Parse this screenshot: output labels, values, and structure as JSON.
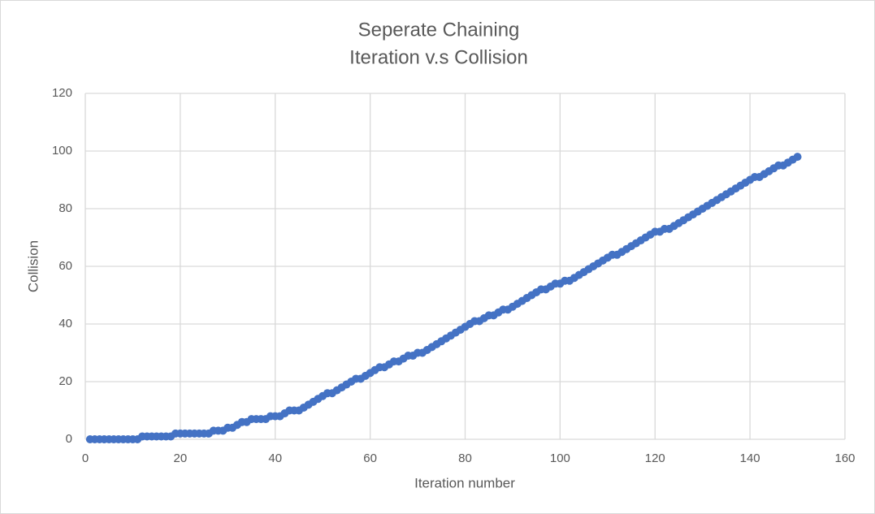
{
  "chart_data": {
    "type": "line",
    "title": "Seperate Chaining",
    "subtitle": "Iteration v.s Collision",
    "x_label": "Iteration number",
    "y_label": "Collision",
    "color": "#4472c4",
    "grid": true,
    "markers": true,
    "xlim": [
      0,
      160
    ],
    "xticks": [
      0,
      20,
      40,
      60,
      80,
      100,
      120,
      140,
      160
    ],
    "ylim": [
      0,
      120
    ],
    "yticks": [
      0,
      20,
      40,
      60,
      80,
      100,
      120
    ],
    "x": [
      1,
      2,
      3,
      4,
      5,
      6,
      7,
      8,
      9,
      10,
      11,
      12,
      13,
      14,
      15,
      16,
      17,
      18,
      19,
      20,
      21,
      22,
      23,
      24,
      25,
      26,
      27,
      28,
      29,
      30,
      31,
      32,
      33,
      34,
      35,
      36,
      37,
      38,
      39,
      40,
      41,
      42,
      43,
      44,
      45,
      46,
      47,
      48,
      49,
      50,
      51,
      52,
      53,
      54,
      55,
      56,
      57,
      58,
      59,
      60,
      61,
      62,
      63,
      64,
      65,
      66,
      67,
      68,
      69,
      70,
      71,
      72,
      73,
      74,
      75,
      76,
      77,
      78,
      79,
      80,
      81,
      82,
      83,
      84,
      85,
      86,
      87,
      88,
      89,
      90,
      91,
      92,
      93,
      94,
      95,
      96,
      97,
      98,
      99,
      100,
      101,
      102,
      103,
      104,
      105,
      106,
      107,
      108,
      109,
      110,
      111,
      112,
      113,
      114,
      115,
      116,
      117,
      118,
      119,
      120,
      121,
      122,
      123,
      124,
      125,
      126,
      127,
      128,
      129,
      130,
      131,
      132,
      133,
      134,
      135,
      136,
      137,
      138,
      139,
      140,
      141,
      142,
      143,
      144,
      145,
      146,
      147,
      148,
      149,
      150
    ],
    "values": [
      0,
      0,
      0,
      0,
      0,
      0,
      0,
      0,
      0,
      0,
      0,
      1,
      1,
      1,
      1,
      1,
      1,
      1,
      2,
      2,
      2,
      2,
      2,
      2,
      2,
      2,
      3,
      3,
      3,
      4,
      4,
      5,
      6,
      6,
      7,
      7,
      7,
      7,
      8,
      8,
      8,
      9,
      10,
      10,
      10,
      11,
      12,
      13,
      14,
      15,
      16,
      16,
      17,
      18,
      19,
      20,
      21,
      21,
      22,
      23,
      24,
      25,
      25,
      26,
      27,
      27,
      28,
      29,
      29,
      30,
      30,
      31,
      32,
      33,
      34,
      35,
      36,
      37,
      38,
      39,
      40,
      41,
      41,
      42,
      43,
      43,
      44,
      45,
      45,
      46,
      47,
      48,
      49,
      50,
      51,
      52,
      52,
      53,
      54,
      54,
      55,
      55,
      56,
      57,
      58,
      59,
      60,
      61,
      62,
      63,
      64,
      64,
      65,
      66,
      67,
      68,
      69,
      70,
      71,
      72,
      72,
      73,
      73,
      74,
      75,
      76,
      77,
      78,
      79,
      80,
      81,
      82,
      83,
      84,
      85,
      86,
      87,
      88,
      89,
      90,
      91,
      91,
      92,
      93,
      94,
      95,
      95,
      96,
      97,
      98
    ]
  }
}
